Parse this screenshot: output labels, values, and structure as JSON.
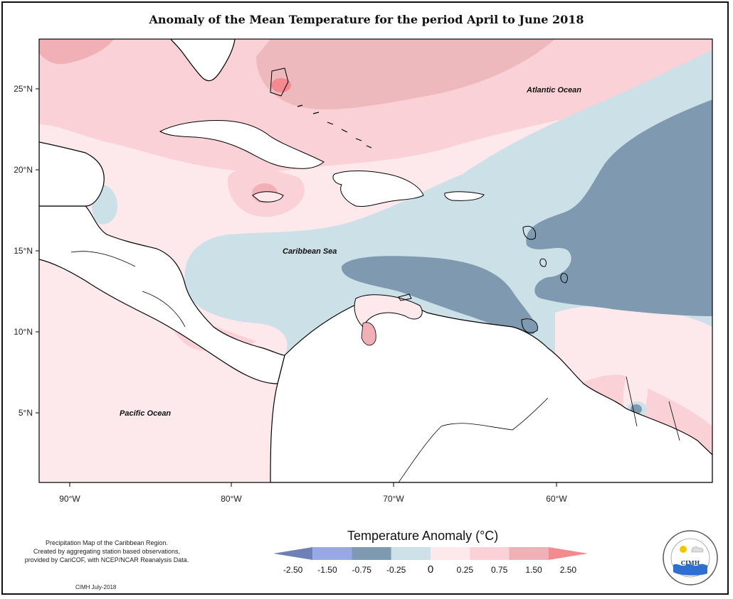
{
  "title": "Anomaly of the Mean Temperature for the period April to June 2018",
  "map": {
    "lat_ticks": [
      "25°N",
      "20°N",
      "15°N",
      "10°N",
      "5°N"
    ],
    "lon_ticks": [
      "90°W",
      "80°W",
      "70°W",
      "60°W"
    ],
    "labels": {
      "atlantic": "Atlantic Ocean",
      "caribbean": "Caribbean Sea",
      "pacific": "Pacific Ocean"
    }
  },
  "legend": {
    "title": "Temperature Anomaly (°C)",
    "classes": [
      {
        "color": "#6f80b6"
      },
      {
        "color": "#9aa7e6"
      },
      {
        "color": "#7f9ab0"
      },
      {
        "color": "#cce0e8"
      },
      {
        "color": "#fde9ec"
      },
      {
        "color": "#f9d1d6"
      },
      {
        "color": "#f0b0b6"
      },
      {
        "color": "#f48a90"
      }
    ],
    "breaks": [
      "-2.50",
      "-1.50",
      "-0.75",
      "-0.25",
      "0",
      "0.25",
      "0.75",
      "1.50",
      "2.50"
    ]
  },
  "note": {
    "line1": "Precipitation Map of the Caribbean Region.",
    "line2": "Created by aggregating station based observations,",
    "line3": "provided by CariCOF, with NCEP/NCAR Reanalysis Data."
  },
  "credit": "CIMH July-2018",
  "logo": {
    "label": "CIMH",
    "ring_text": "Caribbean Institute for Meteorology and Hydrology"
  }
}
